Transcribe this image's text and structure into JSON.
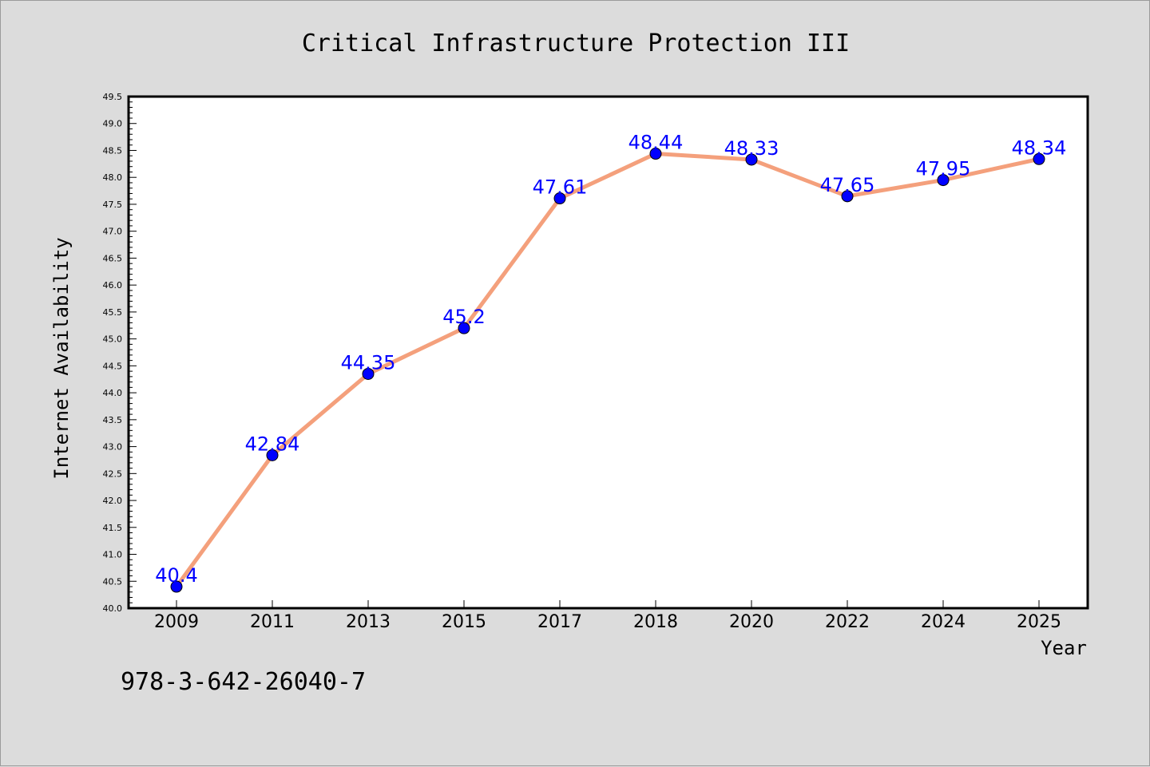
{
  "chart_data": {
    "type": "line",
    "title": "Critical Infrastructure Protection III",
    "xlabel": "Year",
    "ylabel": "Internet Availability",
    "categories": [
      "2009",
      "2011",
      "2013",
      "2015",
      "2017",
      "2018",
      "2020",
      "2022",
      "2024",
      "2025"
    ],
    "series": [
      {
        "values": [
          40.4,
          42.84,
          44.35,
          45.2,
          47.61,
          48.44,
          48.33,
          47.65,
          47.95,
          48.34
        ],
        "data_labels": [
          "40.4",
          "42.84",
          "44.35",
          "45.2",
          "47.61",
          "48.44",
          "48.33",
          "47.65",
          "47.95",
          "48.34"
        ],
        "line_color": "#f4a07c",
        "marker_color": "#0000ff"
      }
    ],
    "ylim": [
      40.0,
      49.5
    ],
    "y_ticks": [
      "40.0",
      "40.5",
      "41.0",
      "41.5",
      "42.0",
      "42.5",
      "43.0",
      "43.5",
      "44.0",
      "44.5",
      "45.0",
      "45.5",
      "46.0",
      "46.5",
      "47.0",
      "47.5",
      "48.0",
      "48.5",
      "49.0",
      "49.5"
    ],
    "grid": false,
    "legend": "none"
  },
  "footnote": "978-3-642-26040-7",
  "colors": {
    "background": "#dcdcdc",
    "plot_background": "#ffffff",
    "data_label": "#0000ff"
  }
}
